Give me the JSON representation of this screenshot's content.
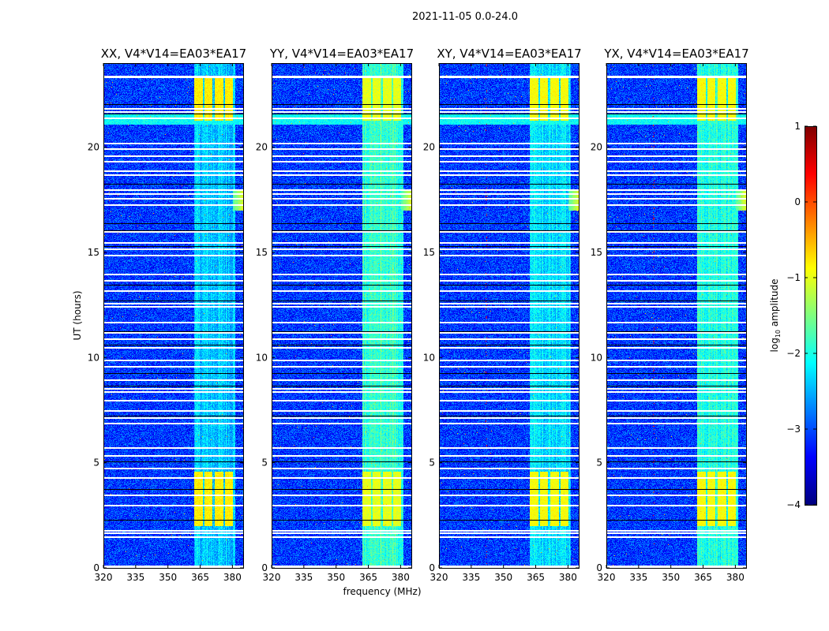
{
  "figure_title": "2021-11-05 0.0-24.0",
  "chart_data": {
    "type": "heatmap",
    "panels": [
      {
        "title": "XX, V4*V14=EA03*EA17",
        "band_level": -2.4,
        "burst_level": -0.8
      },
      {
        "title": "YY, V4*V14=EA03*EA17",
        "band_level": -1.9,
        "burst_level": -1.0
      },
      {
        "title": "XY, V4*V14=EA03*EA17",
        "band_level": -2.3,
        "burst_level": -0.9
      },
      {
        "title": "YX, V4*V14=EA03*EA17",
        "band_level": -2.0,
        "burst_level": -0.9
      }
    ],
    "xlabel": "frequency (MHz)",
    "ylabel": "UT (hours)",
    "xlim": [
      320,
      385
    ],
    "ylim": [
      0,
      24
    ],
    "xticks": [
      "320",
      "335",
      "350",
      "365",
      "380"
    ],
    "xtick_values": [
      320,
      335,
      350,
      365,
      380
    ],
    "yticks": [
      "0",
      "5",
      "10",
      "15",
      "20"
    ],
    "ytick_values": [
      0,
      5,
      10,
      15,
      20
    ],
    "background_level": -3.1,
    "rfi_band_mhz": [
      362,
      381
    ],
    "burst_periods_hours": [
      [
        2.0,
        4.6
      ],
      [
        21.3,
        23.4
      ]
    ],
    "flagged_rows_hours": [
      23.4,
      23.35,
      21.85,
      21.7,
      21.4,
      20.2,
      19.95,
      19.6,
      19.35,
      18.9,
      18.7,
      18.0,
      17.8,
      17.6,
      17.3,
      16.0,
      15.5,
      15.2,
      14.9,
      14.0,
      13.7,
      13.2,
      12.6,
      12.45,
      11.7,
      11.2,
      10.9,
      10.5,
      9.9,
      9.6,
      8.95,
      8.55,
      8.4,
      8.0,
      7.5,
      7.15,
      6.9,
      5.75,
      5.35,
      4.75,
      4.3,
      3.5,
      3.0,
      1.8,
      1.7,
      1.5,
      0.1,
      0.05
    ],
    "gap_rows_hours": [
      22.05,
      21.6,
      18.25,
      16.4,
      16.05,
      15.3,
      13.45,
      12.7,
      11.25,
      10.6,
      9.25,
      8.65,
      7.25,
      5.05,
      3.75,
      2.3
    ],
    "colorbar": {
      "label_prefix": "log",
      "label_sub": "10",
      "label_suffix": " amplitude",
      "range": [
        -4,
        1
      ],
      "ticks": [
        "1",
        "0",
        "−1",
        "−2",
        "−3",
        "−4"
      ],
      "tick_values": [
        1,
        0,
        -1,
        -2,
        -3,
        -4
      ],
      "colormap": "jet"
    }
  }
}
